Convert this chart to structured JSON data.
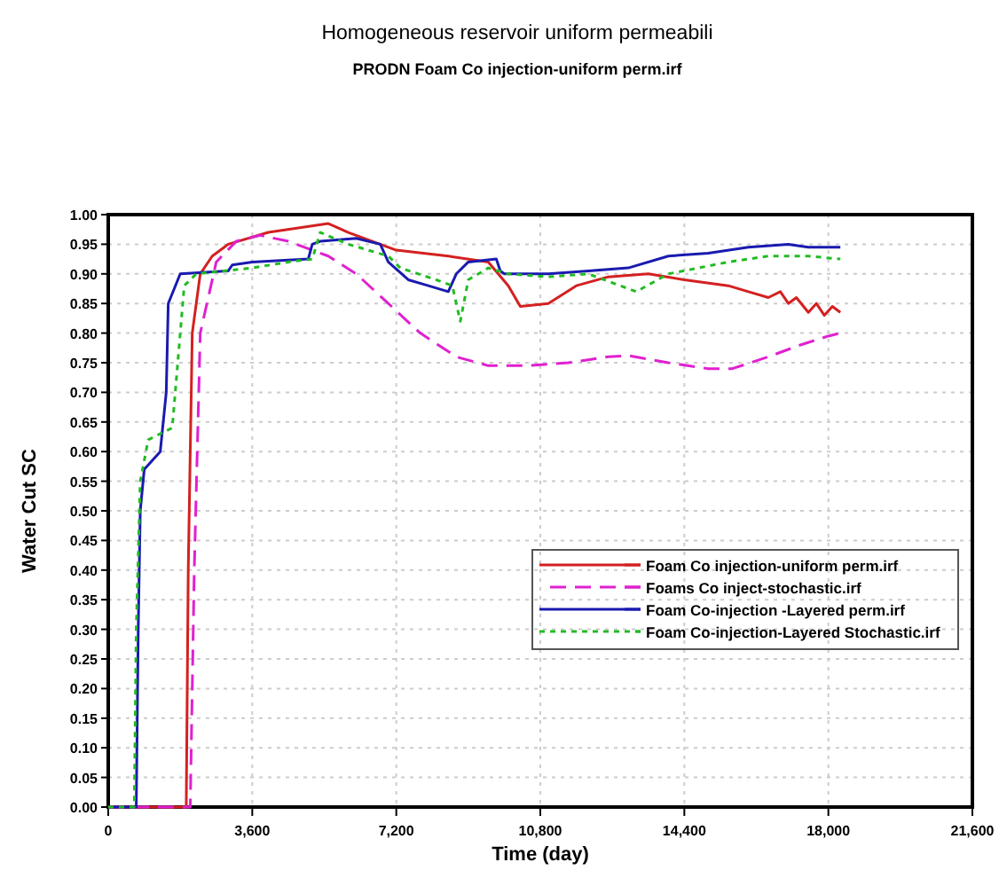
{
  "chart_data": {
    "type": "line",
    "title": "Homogeneous reservoir uniform permeabili",
    "subtitle": "PRODN Foam Co injection-uniform perm.irf",
    "xlabel": "Time (day)",
    "ylabel": "Water Cut SC",
    "xlim": [
      0,
      21600
    ],
    "xticks": [
      0,
      {
        "value": 3600,
        "label": "3,600"
      },
      {
        "value": 7200,
        "label": "7,200"
      },
      {
        "value": 10800,
        "label": "10,800"
      },
      {
        "value": 14400,
        "label": "14,400"
      },
      {
        "value": 18000,
        "label": "18,000"
      },
      {
        "value": 21600,
        "label": "21,600"
      }
    ],
    "ylim": [
      0,
      1
    ],
    "yticks": [
      {
        "value": 0,
        "label": "0.00"
      },
      {
        "value": 0.05,
        "label": "0.05"
      },
      {
        "value": 0.1,
        "label": "0.10"
      },
      {
        "value": 0.15,
        "label": "0.15"
      },
      {
        "value": 0.2,
        "label": "0.20"
      },
      {
        "value": 0.25,
        "label": "0.25"
      },
      {
        "value": 0.3,
        "label": "0.30"
      },
      {
        "value": 0.35,
        "label": "0.35"
      },
      {
        "value": 0.4,
        "label": "0.40"
      },
      {
        "value": 0.45,
        "label": "0.45"
      },
      {
        "value": 0.5,
        "label": "0.50"
      },
      {
        "value": 0.55,
        "label": "0.55"
      },
      {
        "value": 0.6,
        "label": "0.60"
      },
      {
        "value": 0.65,
        "label": "0.65"
      },
      {
        "value": 0.7,
        "label": "0.70"
      },
      {
        "value": 0.75,
        "label": "0.75"
      },
      {
        "value": 0.8,
        "label": "0.80"
      },
      {
        "value": 0.85,
        "label": "0.85"
      },
      {
        "value": 0.9,
        "label": "0.90"
      },
      {
        "value": 0.95,
        "label": "0.95"
      },
      {
        "value": 1,
        "label": "1.00"
      }
    ],
    "grid": true,
    "legend": "right",
    "marker": "none",
    "series": [
      {
        "name": "Foam Co injection-uniform perm.irf",
        "color": "#d42020",
        "line_style": "solid",
        "x": [
          0,
          1950,
          2000,
          2100,
          2300,
          2600,
          3000,
          4000,
          5500,
          6000,
          7200,
          8500,
          9500,
          10000,
          10300,
          11000,
          11700,
          12500,
          13500,
          14400,
          15500,
          16000,
          16500,
          16800,
          17000,
          17200,
          17500,
          17700,
          17900,
          18100,
          18300
        ],
        "values": [
          0,
          0,
          0.4,
          0.8,
          0.9,
          0.93,
          0.95,
          0.97,
          0.985,
          0.97,
          0.94,
          0.93,
          0.92,
          0.88,
          0.845,
          0.85,
          0.88,
          0.895,
          0.9,
          0.89,
          0.88,
          0.87,
          0.86,
          0.87,
          0.85,
          0.86,
          0.835,
          0.85,
          0.83,
          0.845,
          0.835
        ]
      },
      {
        "name": "Foams Co inject-stochastic.irf",
        "color": "#e020d0",
        "line_style": "dashed",
        "x": [
          0,
          2050,
          2150,
          2300,
          2700,
          3200,
          3800,
          4500,
          5500,
          6200,
          7000,
          7800,
          8700,
          9500,
          10500,
          11500,
          12500,
          13000,
          14000,
          15000,
          15600,
          16500,
          17300,
          18000,
          18300
        ],
        "values": [
          0,
          0,
          0.4,
          0.8,
          0.92,
          0.955,
          0.965,
          0.955,
          0.93,
          0.9,
          0.85,
          0.8,
          0.76,
          0.745,
          0.745,
          0.75,
          0.76,
          0.762,
          0.75,
          0.74,
          0.74,
          0.76,
          0.78,
          0.795,
          0.8
        ]
      },
      {
        "name": "Foam Co-injection -Layered perm.irf",
        "color": "#1a1ab0",
        "line_style": "solid",
        "x": [
          0,
          700,
          750,
          800,
          900,
          1300,
          1450,
          1500,
          1800,
          3000,
          3100,
          3600,
          5000,
          5100,
          5300,
          6200,
          6800,
          7000,
          7500,
          8000,
          8500,
          8700,
          9000,
          9700,
          9800,
          9900,
          11000,
          12000,
          13000,
          14000,
          15000,
          16000,
          17000,
          17500,
          18300
        ],
        "values": [
          0,
          0,
          0.3,
          0.5,
          0.57,
          0.6,
          0.7,
          0.85,
          0.9,
          0.905,
          0.915,
          0.92,
          0.925,
          0.95,
          0.955,
          0.96,
          0.95,
          0.92,
          0.89,
          0.88,
          0.87,
          0.9,
          0.92,
          0.925,
          0.905,
          0.9,
          0.9,
          0.905,
          0.91,
          0.93,
          0.935,
          0.945,
          0.95,
          0.945,
          0.945
        ]
      },
      {
        "name": "Foam Co-injection-Layered Stochastic.irf",
        "color": "#22bb22",
        "line_style": "dotted",
        "x": [
          0,
          650,
          700,
          800,
          1000,
          1600,
          1900,
          2200,
          3600,
          4500,
          5100,
          5300,
          6000,
          7000,
          7300,
          8200,
          8600,
          8800,
          9000,
          9500,
          10000,
          11000,
          12000,
          12800,
          13200,
          14000,
          15500,
          16500,
          17500,
          18300
        ],
        "values": [
          0,
          0,
          0.3,
          0.55,
          0.62,
          0.64,
          0.88,
          0.9,
          0.91,
          0.92,
          0.925,
          0.97,
          0.95,
          0.93,
          0.91,
          0.89,
          0.88,
          0.82,
          0.89,
          0.91,
          0.9,
          0.895,
          0.9,
          0.88,
          0.87,
          0.9,
          0.92,
          0.93,
          0.93,
          0.925
        ]
      }
    ]
  }
}
